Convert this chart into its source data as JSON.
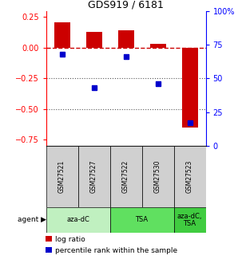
{
  "title": "GDS919 / 6181",
  "samples": [
    "GSM27521",
    "GSM27527",
    "GSM27522",
    "GSM27530",
    "GSM27523"
  ],
  "log_ratios": [
    0.21,
    0.13,
    0.14,
    0.035,
    -0.65
  ],
  "percentile_ranks": [
    68,
    43,
    66,
    46,
    17
  ],
  "agents": [
    {
      "label": "aza-dC",
      "span": [
        0,
        2
      ],
      "color": "#c0f0c0"
    },
    {
      "label": "TSA",
      "span": [
        2,
        4
      ],
      "color": "#60e060"
    },
    {
      "label": "aza-dC,\nTSA",
      "span": [
        4,
        5
      ],
      "color": "#40cc40"
    }
  ],
  "ylim_left": [
    -0.8,
    0.3
  ],
  "ylim_right": [
    0,
    100
  ],
  "yticks_left": [
    -0.75,
    -0.5,
    -0.25,
    0.0,
    0.25
  ],
  "yticks_right": [
    0,
    25,
    50,
    75,
    100
  ],
  "bar_color": "#cc0000",
  "dot_color": "#0000cc",
  "hline_color": "#cc0000",
  "dotline_color": "#555555",
  "background_color": "#ffffff",
  "legend_labels": [
    "log ratio",
    "percentile rank within the sample"
  ],
  "sample_bg_color": "#d0d0d0",
  "bar_width": 0.5
}
